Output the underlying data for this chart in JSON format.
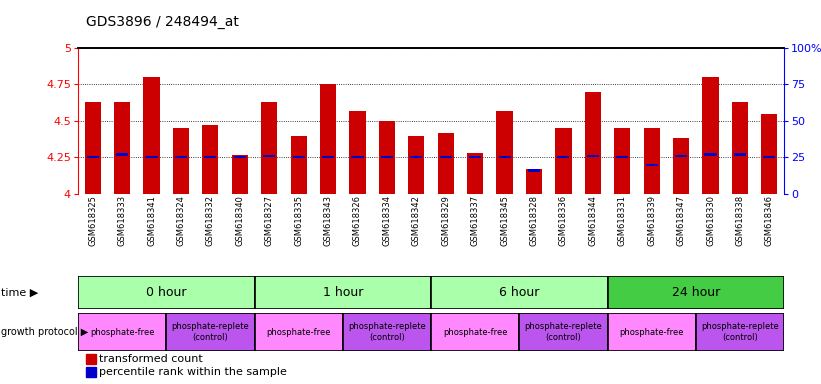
{
  "title": "GDS3896 / 248494_at",
  "samples": [
    "GSM618325",
    "GSM618333",
    "GSM618341",
    "GSM618324",
    "GSM618332",
    "GSM618340",
    "GSM618327",
    "GSM618335",
    "GSM618343",
    "GSM618326",
    "GSM618334",
    "GSM618342",
    "GSM618329",
    "GSM618337",
    "GSM618345",
    "GSM618328",
    "GSM618336",
    "GSM618344",
    "GSM618331",
    "GSM618339",
    "GSM618347",
    "GSM618330",
    "GSM618338",
    "GSM618346"
  ],
  "bar_values": [
    4.63,
    4.63,
    4.8,
    4.45,
    4.47,
    4.27,
    4.63,
    4.4,
    4.75,
    4.57,
    4.5,
    4.4,
    4.42,
    4.28,
    4.57,
    4.17,
    4.45,
    4.7,
    4.45,
    4.45,
    4.38,
    4.8,
    4.63,
    4.55
  ],
  "percentile_values": [
    4.255,
    4.27,
    4.255,
    4.255,
    4.255,
    4.255,
    4.26,
    4.255,
    4.255,
    4.255,
    4.255,
    4.255,
    4.255,
    4.255,
    4.255,
    4.16,
    4.255,
    4.26,
    4.255,
    4.2,
    4.26,
    4.27,
    4.27,
    4.255
  ],
  "bar_color": "#cc0000",
  "percentile_color": "#0000cc",
  "ymin": 4.0,
  "ymax": 5.0,
  "yticks": [
    4.0,
    4.25,
    4.5,
    4.75,
    5.0
  ],
  "ytick_labels": [
    "4",
    "4.25",
    "4.5",
    "4.75",
    "5"
  ],
  "right_yticks": [
    0,
    25,
    50,
    75,
    100
  ],
  "right_ytick_labels": [
    "0",
    "25",
    "50",
    "75",
    "100%"
  ],
  "time_groups": [
    {
      "label": "0 hour",
      "start": 0,
      "end": 6,
      "color": "#aaffaa"
    },
    {
      "label": "1 hour",
      "start": 6,
      "end": 12,
      "color": "#aaffaa"
    },
    {
      "label": "6 hour",
      "start": 12,
      "end": 18,
      "color": "#aaffaa"
    },
    {
      "label": "24 hour",
      "start": 18,
      "end": 24,
      "color": "#44cc44"
    }
  ],
  "protocol_groups": [
    {
      "label": "phosphate-free",
      "start": 0,
      "end": 3,
      "color": "#ff88ff"
    },
    {
      "label": "phosphate-replete\n(control)",
      "start": 3,
      "end": 6,
      "color": "#bb55ee"
    },
    {
      "label": "phosphate-free",
      "start": 6,
      "end": 9,
      "color": "#ff88ff"
    },
    {
      "label": "phosphate-replete\n(control)",
      "start": 9,
      "end": 12,
      "color": "#bb55ee"
    },
    {
      "label": "phosphate-free",
      "start": 12,
      "end": 15,
      "color": "#ff88ff"
    },
    {
      "label": "phosphate-replete\n(control)",
      "start": 15,
      "end": 18,
      "color": "#bb55ee"
    },
    {
      "label": "phosphate-free",
      "start": 18,
      "end": 21,
      "color": "#ff88ff"
    },
    {
      "label": "phosphate-replete\n(control)",
      "start": 21,
      "end": 24,
      "color": "#bb55ee"
    }
  ],
  "bar_width": 0.55
}
